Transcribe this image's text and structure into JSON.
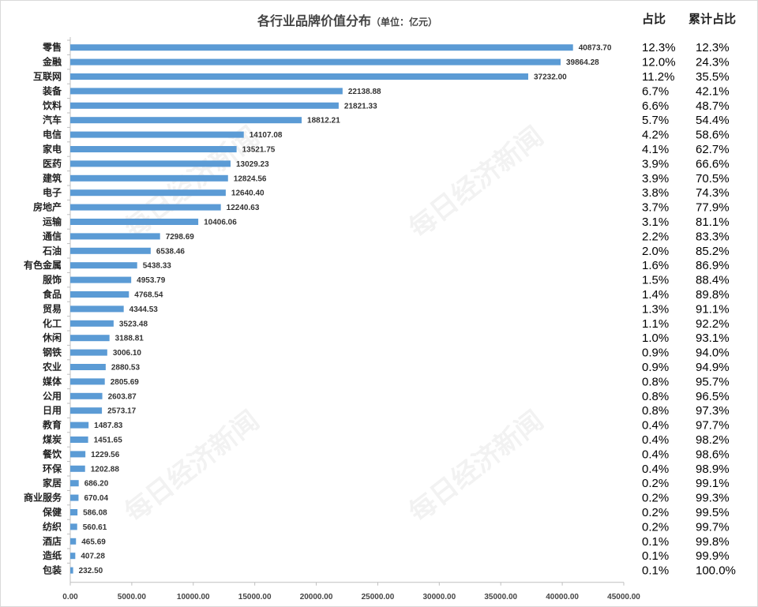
{
  "chart_data": {
    "type": "bar",
    "orientation": "horizontal",
    "title": "各行业品牌价值分布",
    "title_unit": "（单位：亿元）",
    "share_header": "占比",
    "cumulative_header": "累计占比",
    "xlim": [
      0,
      45000
    ],
    "x_ticks": [
      "0.00",
      "5000.00",
      "10000.00",
      "15000.00",
      "20000.00",
      "25000.00",
      "30000.00",
      "35000.00",
      "40000.00",
      "45000.00"
    ],
    "bar_color": "#5b9bd5",
    "watermark": "每日经济新闻",
    "categories": [
      "零售",
      "金融",
      "互联网",
      "装备",
      "饮料",
      "汽车",
      "电信",
      "家电",
      "医药",
      "建筑",
      "电子",
      "房地产",
      "运输",
      "通信",
      "石油",
      "有色金属",
      "服饰",
      "食品",
      "贸易",
      "化工",
      "休闲",
      "钢铁",
      "农业",
      "媒体",
      "公用",
      "日用",
      "教育",
      "煤炭",
      "餐饮",
      "环保",
      "家居",
      "商业服务",
      "保健",
      "纺织",
      "酒店",
      "造纸",
      "包装"
    ],
    "values": [
      40873.7,
      39864.28,
      37232.0,
      22138.88,
      21821.33,
      18812.21,
      14107.08,
      13521.75,
      13029.23,
      12824.56,
      12640.4,
      12240.63,
      10406.06,
      7298.69,
      6538.46,
      5438.33,
      4953.79,
      4768.54,
      4344.53,
      3523.48,
      3188.81,
      3006.1,
      2880.53,
      2805.69,
      2603.87,
      2573.17,
      1487.83,
      1451.65,
      1229.56,
      1202.88,
      686.2,
      670.04,
      586.08,
      560.61,
      465.69,
      407.28,
      232.5
    ],
    "value_labels": [
      "40873.70",
      "39864.28",
      "37232.00",
      "22138.88",
      "21821.33",
      "18812.21",
      "14107.08",
      "13521.75",
      "13029.23",
      "12824.56",
      "12640.40",
      "12240.63",
      "10406.06",
      "7298.69",
      "6538.46",
      "5438.33",
      "4953.79",
      "4768.54",
      "4344.53",
      "3523.48",
      "3188.81",
      "3006.10",
      "2880.53",
      "2805.69",
      "2603.87",
      "2573.17",
      "1487.83",
      "1451.65",
      "1229.56",
      "1202.88",
      "686.20",
      "670.04",
      "586.08",
      "560.61",
      "465.69",
      "407.28",
      "232.50"
    ],
    "share": [
      "12.3%",
      "12.0%",
      "11.2%",
      "6.7%",
      "6.6%",
      "5.7%",
      "4.2%",
      "4.1%",
      "3.9%",
      "3.9%",
      "3.8%",
      "3.7%",
      "3.1%",
      "2.2%",
      "2.0%",
      "1.6%",
      "1.5%",
      "1.4%",
      "1.3%",
      "1.1%",
      "1.0%",
      "0.9%",
      "0.9%",
      "0.8%",
      "0.8%",
      "0.8%",
      "0.4%",
      "0.4%",
      "0.4%",
      "0.4%",
      "0.2%",
      "0.2%",
      "0.2%",
      "0.2%",
      "0.1%",
      "0.1%",
      "0.1%"
    ],
    "cumulative": [
      "12.3%",
      "24.3%",
      "35.5%",
      "42.1%",
      "48.7%",
      "54.4%",
      "58.6%",
      "62.7%",
      "66.6%",
      "70.5%",
      "74.3%",
      "77.9%",
      "81.1%",
      "83.3%",
      "85.2%",
      "86.9%",
      "88.4%",
      "89.8%",
      "91.1%",
      "92.2%",
      "93.1%",
      "94.0%",
      "94.9%",
      "95.7%",
      "96.5%",
      "97.3%",
      "97.7%",
      "98.2%",
      "98.6%",
      "98.9%",
      "99.1%",
      "99.3%",
      "99.5%",
      "99.7%",
      "99.8%",
      "99.9%",
      "100.0%"
    ]
  }
}
